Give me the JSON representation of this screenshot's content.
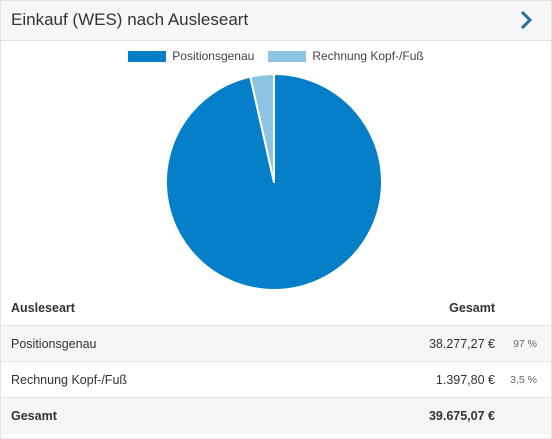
{
  "header": {
    "title": "Einkauf (WES) nach Ausleseart"
  },
  "colors": {
    "series1": "#0580c8",
    "series2": "#8dc4e4"
  },
  "table": {
    "col_type": "Ausleseart",
    "col_total": "Gesamt",
    "rows": [
      {
        "label": "Positionsgenau",
        "amount": "38.277,27 €",
        "percent": "97 %"
      },
      {
        "label": "Rechnung Kopf-/Fuß",
        "amount": "1.397,80 €",
        "percent": "3,5 %"
      }
    ],
    "total_label": "Gesamt",
    "total_amount": "39.675,07 €"
  },
  "chart_data": {
    "type": "pie",
    "title": "Einkauf (WES) nach Ausleseart",
    "categories": [
      "Positionsgenau",
      "Rechnung Kopf-/Fuß"
    ],
    "values": [
      38277.27,
      1397.8
    ],
    "legend": "top-center"
  }
}
